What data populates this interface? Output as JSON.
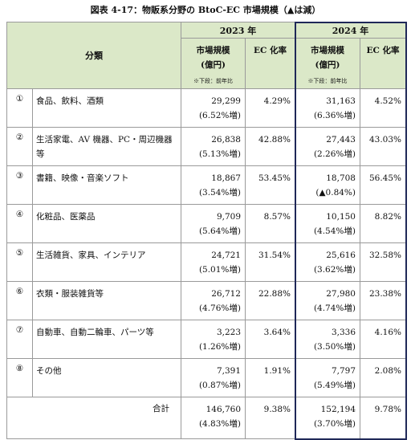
{
  "header": {
    "title": "図表 4-17：物販系分野の BtoC-EC 市場規模（▲は減）",
    "category_label": "分類",
    "groups": [
      {
        "year": "2023 年",
        "size_label": "市場規模",
        "size_unit": "(億円)",
        "ec_label": "EC 化率",
        "note": "※下段：前年比"
      },
      {
        "year": "2024 年",
        "size_label": "市場規模",
        "size_unit": "(億円)",
        "ec_label": "EC 化率",
        "note": "※下段：前年比"
      }
    ]
  },
  "table": {
    "rows": [
      [
        "①",
        "食品、飲料、酒類",
        "29,299",
        "(6.52%増)",
        "4.29%",
        "31,163",
        "(6.36%増)",
        "4.52%"
      ],
      [
        "②",
        "生活家電、AV 機器、PC・周辺機器等",
        "26,838",
        "(5.13%増)",
        "42.88%",
        "27,443",
        "(2.26%増)",
        "43.03%"
      ],
      [
        "③",
        "書籍、映像・音楽ソフト",
        "18,867",
        "(3.54%増)",
        "53.45%",
        "18,708",
        "(▲0.84%)",
        "56.45%"
      ],
      [
        "④",
        "化粧品、医薬品",
        "9,709",
        "(5.64%増)",
        "8.57%",
        "10,150",
        "(4.54%増)",
        "8.82%"
      ],
      [
        "⑤",
        "生活雑貨、家具、インテリア",
        "24,721",
        "(5.01%増)",
        "31.54%",
        "25,616",
        "(3.62%増)",
        "32.58%"
      ],
      [
        "⑥",
        "衣類・服装雑貨等",
        "26,712",
        "(4.76%増)",
        "22.88%",
        "27,980",
        "(4.74%増)",
        "23.38%"
      ],
      [
        "⑦",
        "自動車、自動二輪車、パーツ等",
        "3,223",
        "(1.26%増)",
        "3.64%",
        "3,336",
        "(3.50%増)",
        "4.16%"
      ],
      [
        "⑧",
        "その他",
        "7,391",
        "(0.87%増)",
        "1.91%",
        "7,797",
        "(5.49%増)",
        "2.08%"
      ]
    ],
    "total": [
      "合計",
      "146,760",
      "(4.83%増)",
      "9.38%",
      "152,194",
      "(3.70%増)",
      "9.78%"
    ]
  }
}
